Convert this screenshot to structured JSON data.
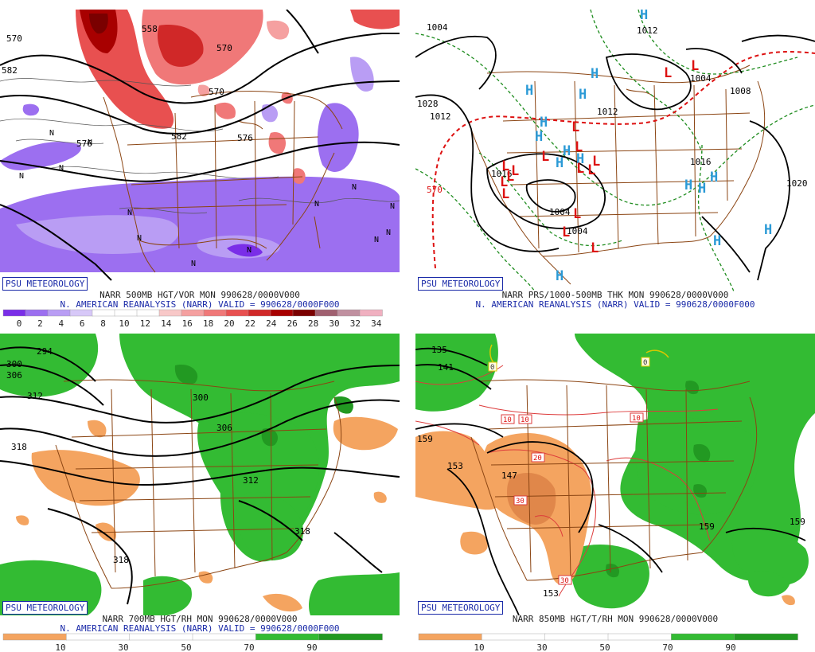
{
  "panels": {
    "vorticity": {
      "badge": "PSU METEOROLOGY",
      "line1": "NARR 500MB HGT/VOR MON 990628/0000V000",
      "line2": "N. AMERICAN REANALYSIS (NARR) VALID = 990628/0000F000",
      "colorbar": {
        "ticks": [
          "0",
          "2",
          "4",
          "6",
          "8",
          "10",
          "12",
          "14",
          "16",
          "18",
          "20",
          "22",
          "24",
          "26",
          "28",
          "30",
          "32",
          "34"
        ],
        "colors": [
          "#7a2ee8",
          "#9c6ff0",
          "#b99df4",
          "#d7c8f8",
          "#ffffff",
          "#ffffff",
          "#ffffff",
          "#f8c8c8",
          "#f5a0a0",
          "#f07878",
          "#e85050",
          "#d02828",
          "#a80000",
          "#7a0000",
          "#a06070",
          "#c090a0",
          "#f0b0c0"
        ]
      },
      "contour_labels": [
        "570",
        "582",
        "576",
        "576",
        "570",
        "582",
        "558",
        "570"
      ],
      "center_labels": [
        "N",
        "N",
        "N",
        "N",
        "N",
        "N",
        "N",
        "N",
        "N",
        "N",
        "N",
        "N",
        "N"
      ]
    },
    "thickness": {
      "badge": "PSU METEOROLOGY",
      "line1": "NARR PRS/1000-500MB THK MON 990628/0000V000",
      "line2": "N. AMERICAN REANALYSIS (NARR) VALID = 990628/0000F000",
      "contour_labels": [
        "1004",
        "1028",
        "1012",
        "1012",
        "1004",
        "1016",
        "1020",
        "1004",
        "570",
        "1012",
        "1008",
        "1004",
        "1016"
      ],
      "highs": [
        "H",
        "H",
        "H",
        "H",
        "H",
        "H",
        "H",
        "H",
        "H",
        "H",
        "H",
        "H",
        "H",
        "H",
        "H"
      ],
      "lows": [
        "L",
        "L",
        "L",
        "L",
        "L",
        "L",
        "L",
        "L",
        "L",
        "L",
        "L",
        "L",
        "L",
        "L",
        "L",
        "L"
      ]
    },
    "rh700": {
      "badge": "PSU METEOROLOGY",
      "line1": "NARR 700MB HGT/RH MON 990628/0000V000",
      "line2": "N. AMERICAN REANALYSIS (NARR) VALID = 990628/0000F000",
      "colorbar": {
        "ticks": [
          "10",
          "30",
          "50",
          "70",
          "90"
        ],
        "colors": [
          "#f4a460",
          "#ffffff",
          "#ffffff",
          "#ffffff",
          "#33bb33",
          "#229922"
        ]
      },
      "contour_labels": [
        "294",
        "300",
        "306",
        "312",
        "300",
        "306",
        "318",
        "312",
        "318",
        "318"
      ]
    },
    "temp850": {
      "badge": "PSU METEOROLOGY",
      "line1": "NARR 850MB HGT/T/RH MON 990628/0000V000",
      "colorbar": {
        "ticks": [
          "10",
          "30",
          "50",
          "70",
          "90"
        ],
        "colors": [
          "#f4a460",
          "#ffffff",
          "#ffffff",
          "#ffffff",
          "#33bb33",
          "#229922"
        ]
      },
      "contour_labels": [
        "135",
        "141",
        "159",
        "153",
        "147",
        "159",
        "153",
        "159"
      ],
      "temp_labels": [
        "0",
        "0",
        "10",
        "10",
        "10",
        "20",
        "30",
        "30"
      ]
    }
  }
}
